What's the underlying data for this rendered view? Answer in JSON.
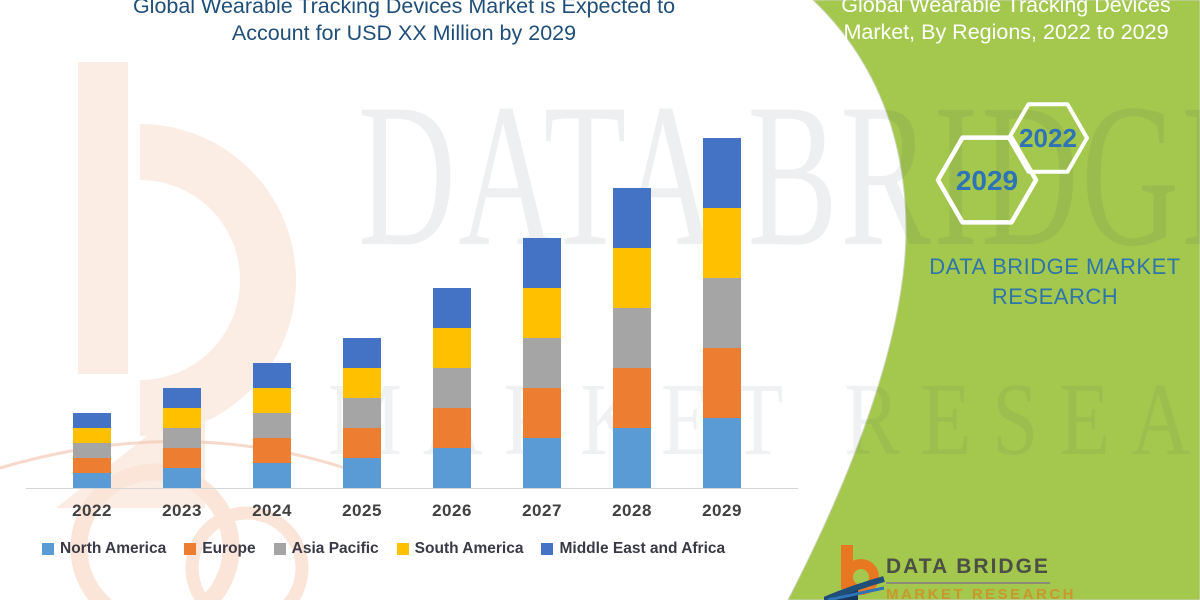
{
  "title": {
    "line1": "Global Wearable Tracking Devices Market is Expected to",
    "line2": "Account for USD XX Million by 2029"
  },
  "side_panel": {
    "header_line1": "Global Wearable Tracking Devices",
    "header_line2": "Market, By Regions, 2022 to 2029",
    "hexagons": [
      {
        "label": "2029"
      },
      {
        "label": "2022"
      }
    ],
    "brand_line1": "DATA BRIDGE MARKET",
    "brand_line2": "RESEARCH",
    "panel_color": "#A4C84E",
    "hex_text_color": "#2E74B5"
  },
  "watermark": {
    "line1": "DATA BRIDGE",
    "line2": "MARKET RESEARCH"
  },
  "footer_logo": {
    "name": "DATA BRIDGE",
    "subtext": "MARKET RESEARCH"
  },
  "chart_data": {
    "type": "bar",
    "stacked": true,
    "title": "Global Wearable Tracking Devices Market is Expected to Account for USD XX Million by 2029",
    "xlabel": "",
    "ylabel": "",
    "note": "No y-axis values shown (USD XX Million); values are relative units estimated from bar heights.",
    "grid": false,
    "legend_position": "bottom",
    "categories": [
      "2022",
      "2023",
      "2024",
      "2025",
      "2026",
      "2027",
      "2028",
      "2029"
    ],
    "series": [
      {
        "name": "North America",
        "color": "#5B9BD5",
        "values": [
          15,
          20,
          25,
          30,
          40,
          50,
          60,
          70
        ]
      },
      {
        "name": "Europe",
        "color": "#ED7D31",
        "values": [
          15,
          20,
          25,
          30,
          40,
          50,
          60,
          70
        ]
      },
      {
        "name": "Asia Pacific",
        "color": "#A5A5A5",
        "values": [
          15,
          20,
          25,
          30,
          40,
          50,
          60,
          70
        ]
      },
      {
        "name": "South America",
        "color": "#FFC000",
        "values": [
          15,
          20,
          25,
          30,
          40,
          50,
          60,
          70
        ]
      },
      {
        "name": "Middle East and Africa",
        "color": "#4472C4",
        "values": [
          15,
          20,
          25,
          30,
          40,
          50,
          60,
          70
        ]
      }
    ],
    "totals": [
      75,
      100,
      125,
      150,
      200,
      250,
      300,
      350
    ],
    "ylim": [
      0,
      360
    ]
  }
}
